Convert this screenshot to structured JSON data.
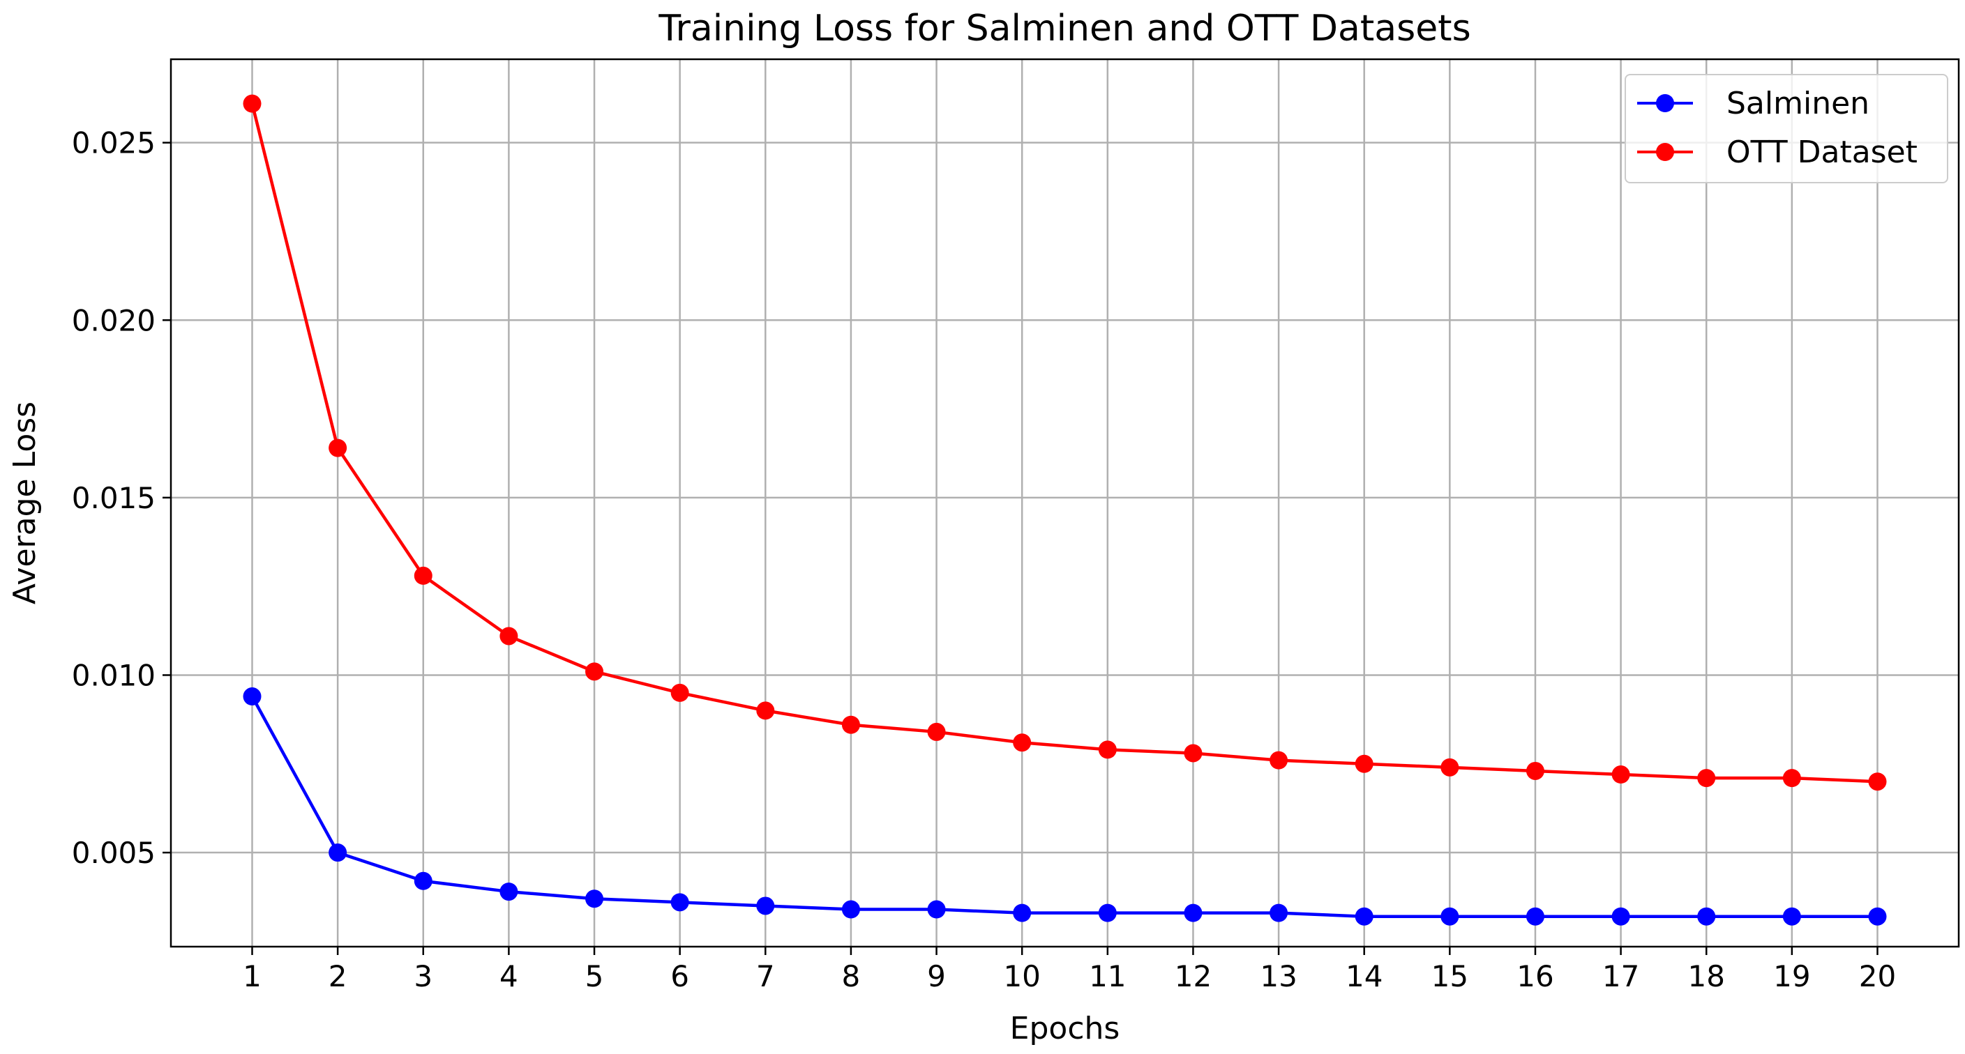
{
  "chart_data": {
    "type": "line",
    "title": "Training Loss for Salminen and OTT Datasets",
    "xlabel": "Epochs",
    "ylabel": "Average Loss",
    "x": [
      1,
      2,
      3,
      4,
      5,
      6,
      7,
      8,
      9,
      10,
      11,
      12,
      13,
      14,
      15,
      16,
      17,
      18,
      19,
      20
    ],
    "xticks": [
      "1",
      "2",
      "3",
      "4",
      "5",
      "6",
      "7",
      "8",
      "9",
      "10",
      "11",
      "12",
      "13",
      "14",
      "15",
      "16",
      "17",
      "18",
      "19",
      "20"
    ],
    "yticks": [
      "0.005",
      "0.010",
      "0.015",
      "0.020",
      "0.025"
    ],
    "ytick_values": [
      0.005,
      0.01,
      0.015,
      0.02,
      0.025
    ],
    "xlim": [
      0.05,
      20.95
    ],
    "ylim": [
      0.00235,
      0.02735
    ],
    "grid": true,
    "legend_position": "top-right",
    "series": [
      {
        "name": "Salminen",
        "color": "#0000ff",
        "values": [
          0.0094,
          0.005,
          0.0042,
          0.0039,
          0.0037,
          0.0036,
          0.0035,
          0.0034,
          0.0034,
          0.0033,
          0.0033,
          0.0033,
          0.0033,
          0.0032,
          0.0032,
          0.0032,
          0.0032,
          0.0032,
          0.0032,
          0.0032
        ]
      },
      {
        "name": "OTT Dataset",
        "color": "#ff0000",
        "values": [
          0.0261,
          0.0164,
          0.0128,
          0.0111,
          0.0101,
          0.0095,
          0.009,
          0.0086,
          0.0084,
          0.0081,
          0.0079,
          0.0078,
          0.0076,
          0.0075,
          0.0074,
          0.0073,
          0.0072,
          0.0071,
          0.0071,
          0.007
        ]
      }
    ]
  }
}
